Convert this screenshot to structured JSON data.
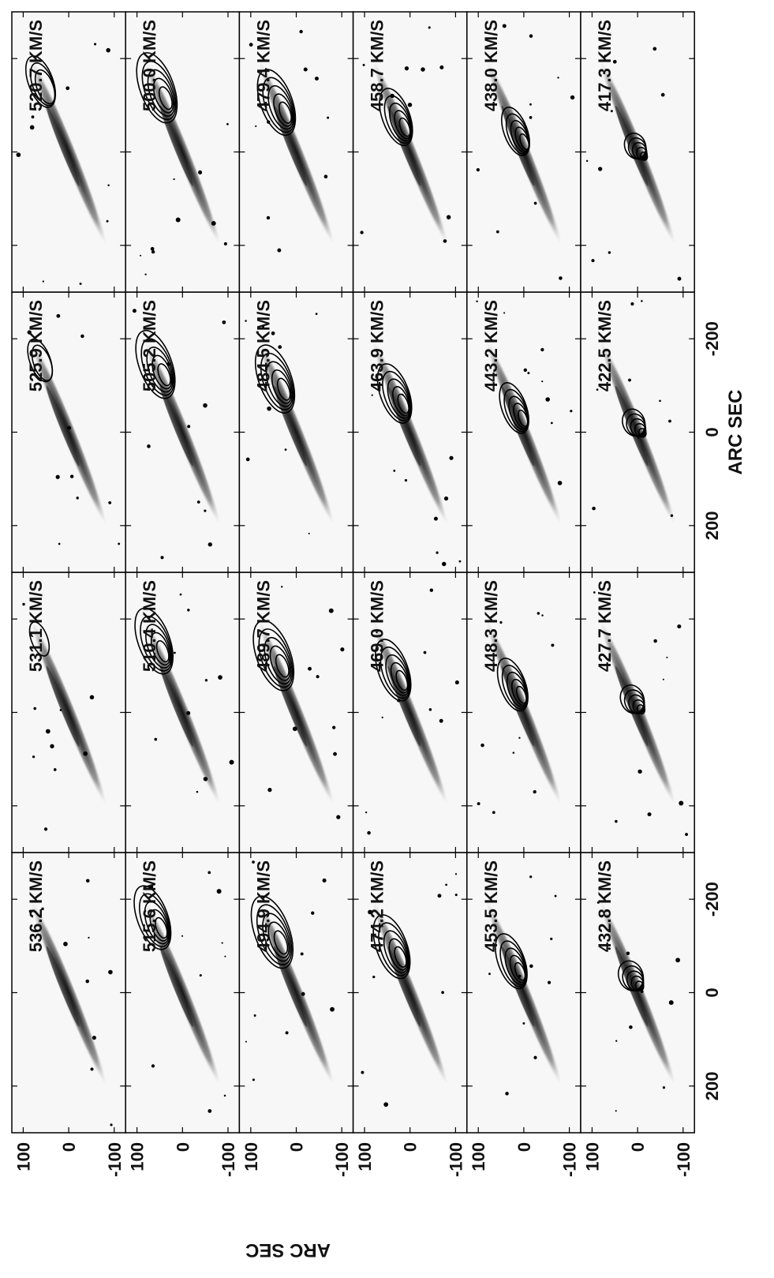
{
  "chart_data": {
    "type": "channel-map",
    "xlabel": "ARC SEC",
    "ylabel": "ARC SEC",
    "xlim": [
      300,
      -300
    ],
    "ylim": [
      -125,
      125
    ],
    "xticks": [
      200,
      0,
      -200
    ],
    "yticks": [
      100,
      0,
      -100
    ],
    "panels": [
      {
        "label": "536.2 KM/S"
      },
      {
        "label": "531.1 KM/S"
      },
      {
        "label": "525.9 KM/S"
      },
      {
        "label": "520.7 KM/S"
      },
      {
        "label": "515.6 KM/S"
      },
      {
        "label": "510.4 KM/S"
      },
      {
        "label": "505.2 KM/S"
      },
      {
        "label": "500.0 KM/S"
      },
      {
        "label": "494.9 KM/S"
      },
      {
        "label": "489.7 KM/S"
      },
      {
        "label": "484.5 KM/S"
      },
      {
        "label": "479.4 KM/S"
      },
      {
        "label": "474.2 KM/S"
      },
      {
        "label": "469.0 KM/S"
      },
      {
        "label": "463.9 KM/S"
      },
      {
        "label": "458.7 KM/S"
      },
      {
        "label": "453.5 KM/S"
      },
      {
        "label": "448.3 KM/S"
      },
      {
        "label": "443.2 KM/S"
      },
      {
        "label": "438.0 KM/S"
      },
      {
        "label": "432.8 KM/S"
      },
      {
        "label": "427.7 KM/S"
      },
      {
        "label": "422.5 KM/S"
      },
      {
        "label": "417.3 KM/S"
      }
    ]
  }
}
